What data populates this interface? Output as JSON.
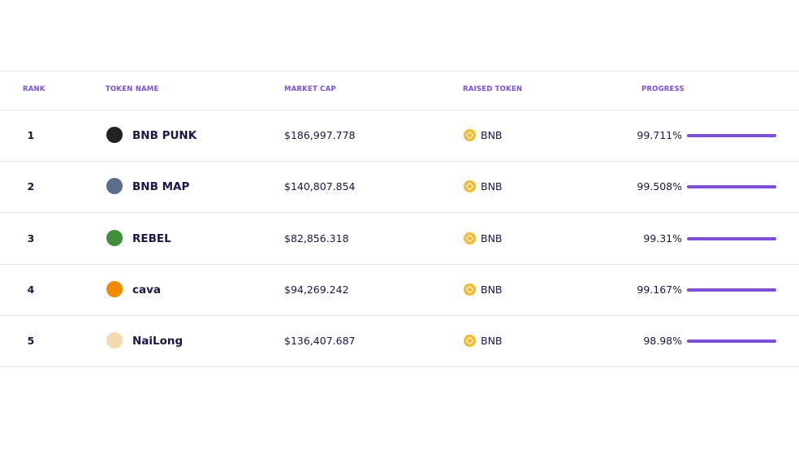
{
  "table": {
    "headers": [
      "RANK",
      "TOKEN NAME",
      "MARKET CAP",
      "RAISED TOKEN",
      "PROGRESS"
    ],
    "rows": [
      [
        "1",
        "BNB PUNK",
        "$186,997.778",
        "BNB",
        "99.711%"
      ],
      [
        "2",
        "BNB MAP",
        "$140,807.854",
        "BNB",
        "99.508%"
      ],
      [
        "3",
        "REBEL",
        "$82,856.318",
        "BNB",
        "99.31%"
      ],
      [
        "4",
        "cava",
        "$94,269.242",
        "BNB",
        "99.167%"
      ],
      [
        "5",
        "NaiLong",
        "$136,407.687",
        "BNB",
        "98.98%"
      ]
    ]
  }
}
